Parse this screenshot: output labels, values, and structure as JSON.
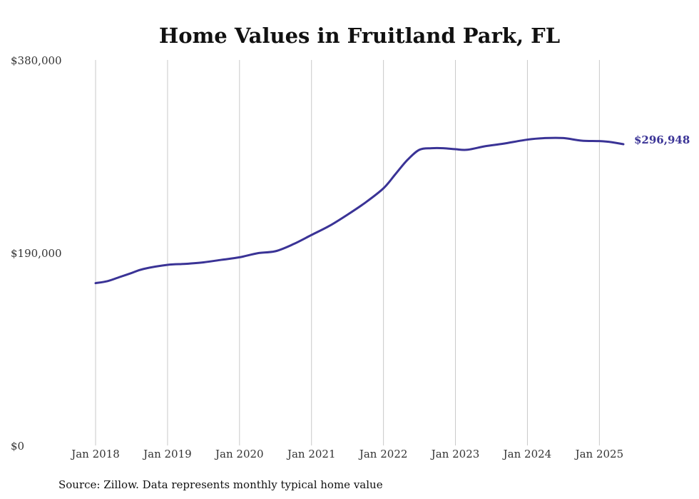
{
  "chart_data": {
    "type": "line",
    "title": "Home Values in Fruitland Park, FL",
    "subtitle": "",
    "xlabel": "",
    "ylabel": "",
    "source": "Source: Zillow. Data represents monthly typical home value",
    "ylim": [
      0,
      380000
    ],
    "y_ticks": [
      0,
      190000,
      380000
    ],
    "y_tick_labels": [
      "$0",
      "$190,000",
      "$380,000"
    ],
    "x_ticks": [
      "2018-01",
      "2019-01",
      "2020-01",
      "2021-01",
      "2022-01",
      "2023-01",
      "2024-01",
      "2025-01"
    ],
    "x_tick_labels": [
      "Jan 2018",
      "Jan 2019",
      "Jan 2020",
      "Jan 2021",
      "Jan 2022",
      "Jan 2023",
      "Jan 2024",
      "Jan 2025"
    ],
    "x_range": [
      "2018-01",
      "2025-05"
    ],
    "grid": "vertical",
    "legend": "none",
    "line_color": "#3a3396",
    "end_label": "$296,948",
    "series": [
      {
        "values": [
          {
            "x": "2018-01",
            "y": 160000
          },
          {
            "x": "2018-03",
            "y": 162000
          },
          {
            "x": "2018-05",
            "y": 166000
          },
          {
            "x": "2018-07",
            "y": 170000
          },
          {
            "x": "2018-09",
            "y": 174000
          },
          {
            "x": "2019-01",
            "y": 178000
          },
          {
            "x": "2019-04",
            "y": 179000
          },
          {
            "x": "2019-07",
            "y": 180500
          },
          {
            "x": "2019-10",
            "y": 183000
          },
          {
            "x": "2020-01",
            "y": 185500
          },
          {
            "x": "2020-04",
            "y": 189500
          },
          {
            "x": "2020-07",
            "y": 191500
          },
          {
            "x": "2020-10",
            "y": 198500
          },
          {
            "x": "2021-01",
            "y": 207500
          },
          {
            "x": "2021-04",
            "y": 216500
          },
          {
            "x": "2021-07",
            "y": 227500
          },
          {
            "x": "2021-10",
            "y": 239500
          },
          {
            "x": "2022-01",
            "y": 253500
          },
          {
            "x": "2022-03",
            "y": 267500
          },
          {
            "x": "2022-05",
            "y": 281500
          },
          {
            "x": "2022-07",
            "y": 291500
          },
          {
            "x": "2022-09",
            "y": 293000
          },
          {
            "x": "2022-11",
            "y": 293000
          },
          {
            "x": "2023-01",
            "y": 292000
          },
          {
            "x": "2023-03",
            "y": 291500
          },
          {
            "x": "2023-06",
            "y": 295000
          },
          {
            "x": "2023-09",
            "y": 297500
          },
          {
            "x": "2024-01",
            "y": 301500
          },
          {
            "x": "2024-04",
            "y": 303000
          },
          {
            "x": "2024-07",
            "y": 303000
          },
          {
            "x": "2024-10",
            "y": 300500
          },
          {
            "x": "2025-01",
            "y": 300000
          },
          {
            "x": "2025-03",
            "y": 299000
          },
          {
            "x": "2025-05",
            "y": 296948
          }
        ]
      }
    ]
  }
}
